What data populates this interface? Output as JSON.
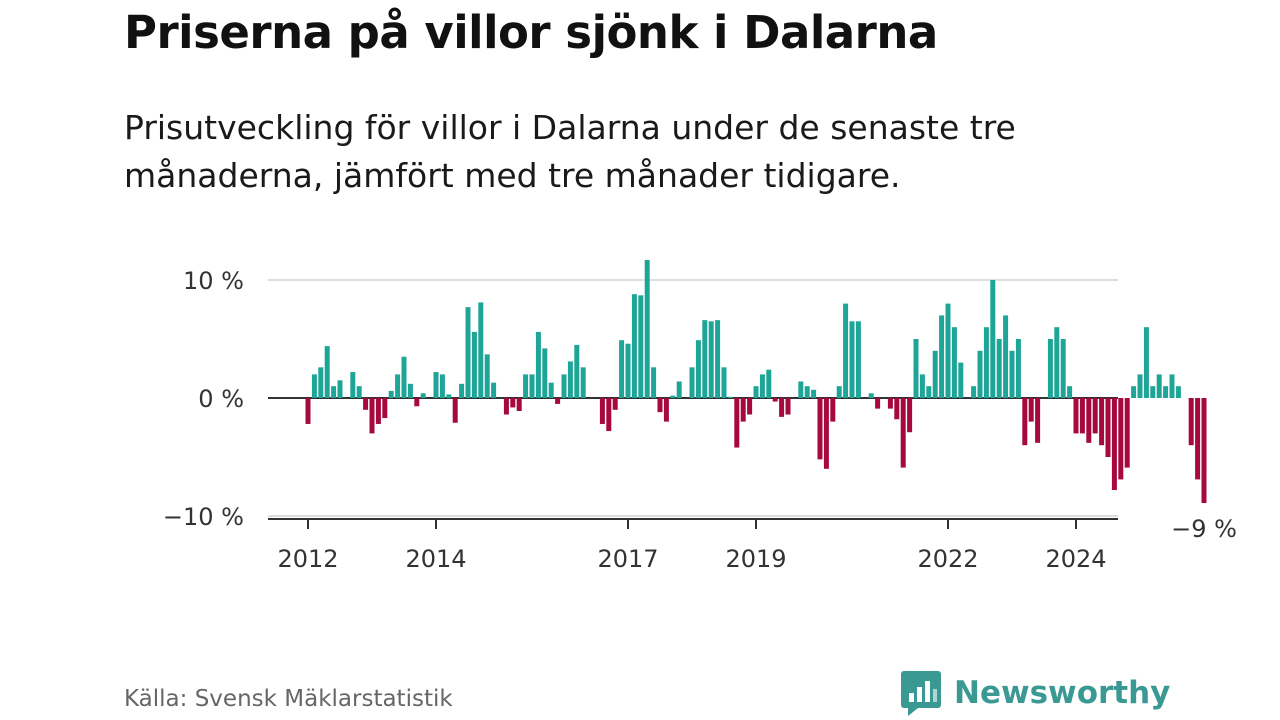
{
  "title": "Priserna på villor sjönk i Dalarna",
  "subtitle": "Prisutveckling för villor i Dalarna under de senaste tre månaderna, jämfört med tre månader tidigare.",
  "source": "Källa: Svensk Mäklarstatistik",
  "brand": "Newsworthy",
  "colors": {
    "positive": "#1ea597",
    "negative": "#a5093e",
    "brand": "#3a9a93"
  },
  "chart_data": {
    "type": "bar",
    "title": "Priserna på villor sjönk i Dalarna",
    "xlabel": "",
    "ylabel": "",
    "ylim": [
      -10,
      12
    ],
    "unit": "%",
    "y_ticks": [
      {
        "value": 10,
        "label": "10 %"
      },
      {
        "value": 0,
        "label": "0 %"
      },
      {
        "value": -10,
        "label": "−10 %"
      }
    ],
    "x_ticks": [
      {
        "index": 0,
        "label": "2012"
      },
      {
        "index": 20,
        "label": "2014"
      },
      {
        "index": 50,
        "label": "2017"
      },
      {
        "index": 70,
        "label": "2019"
      },
      {
        "index": 100,
        "label": "2022"
      },
      {
        "index": 120,
        "label": "2024"
      }
    ],
    "last_label": "−9 %",
    "values": [
      -2.2,
      2.0,
      2.6,
      4.4,
      1.0,
      1.5,
      0,
      2.2,
      1.0,
      -1.0,
      -3.0,
      -2.2,
      -1.7,
      0.6,
      2.0,
      3.5,
      1.2,
      -0.7,
      0.4,
      0,
      2.2,
      2.0,
      0.3,
      -2.1,
      1.2,
      7.7,
      5.6,
      8.1,
      3.7,
      1.3,
      0,
      -1.4,
      -0.8,
      -1.1,
      2.0,
      2.0,
      5.6,
      4.2,
      1.3,
      -0.5,
      2.0,
      3.1,
      4.5,
      2.6,
      0,
      0,
      -2.2,
      -2.8,
      -1.0,
      4.9,
      4.6,
      8.8,
      8.7,
      11.7,
      2.6,
      -1.2,
      -2.0,
      0.2,
      1.4,
      0,
      2.6,
      4.9,
      6.6,
      6.5,
      6.6,
      2.6,
      0.1,
      -4.2,
      -2.0,
      -1.4,
      1.0,
      2.0,
      2.4,
      -0.3,
      -1.6,
      -1.4,
      0,
      1.4,
      1.0,
      0.7,
      -5.2,
      -6.0,
      -2.0,
      1.0,
      8.0,
      6.5,
      6.5,
      0,
      0.4,
      -0.9,
      0,
      -0.9,
      -1.8,
      -5.9,
      -2.9,
      5.0,
      2.0,
      1.0,
      4.0,
      7.0,
      8.0,
      6.0,
      3.0,
      0,
      1.0,
      4.0,
      6.0,
      10.0,
      5.0,
      7.0,
      4.0,
      5.0,
      -4.0,
      -2.0,
      -3.8,
      0,
      5.0,
      6.0,
      5.0,
      1.0,
      -3.0,
      -3.0,
      -3.8,
      -3.0,
      -4.0,
      -5.0,
      -7.8,
      -6.9,
      -5.9,
      1.0,
      2.0,
      6.0,
      1.0,
      2.0,
      1.0,
      2.0,
      1.0,
      0,
      -4.0,
      -6.9,
      -8.9
    ]
  }
}
